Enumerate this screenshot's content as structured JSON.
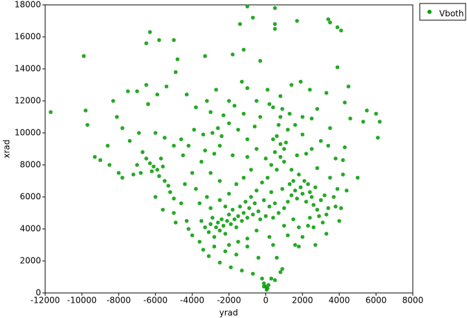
{
  "chart_data": {
    "type": "scatter",
    "x_label": "yrad",
    "y_label": "xrad",
    "legend": "upper-right-outside",
    "xlim": [
      -12000,
      8000
    ],
    "xticks": [
      -12000,
      -10000,
      -8000,
      -6000,
      -4000,
      -2000,
      0,
      2000,
      4000,
      6000,
      8000
    ],
    "ylim": [
      0,
      18000
    ],
    "yticks": [
      0,
      2000,
      4000,
      6000,
      8000,
      10000,
      12000,
      14000,
      16000,
      18000
    ],
    "x": [
      -11700,
      -9900,
      -6300,
      -6500,
      -5800,
      -5000,
      -4800,
      -3300,
      -1800,
      -1200,
      -1400,
      -1000,
      -700,
      -300,
      500,
      500,
      500,
      1700,
      3400,
      3500,
      3900,
      4100,
      3900,
      -9800,
      -9700,
      -9300,
      -9000,
      -8600,
      -8300,
      -8100,
      -7500,
      -7000,
      -6500,
      -6400,
      -5900,
      -5400,
      -4900,
      -4300,
      -3800,
      -3200,
      -2700,
      -2000,
      -1300,
      -1000,
      -500,
      100,
      -1200,
      400,
      1400,
      1900,
      2400,
      3300,
      4500,
      4300,
      4600,
      5500,
      5300,
      6000,
      6200,
      6100,
      5000,
      4400,
      4100,
      4000,
      -8500,
      -8000,
      -7800,
      -7200,
      -7000,
      -6700,
      -6500,
      -6300,
      -6100,
      -5900,
      -5800,
      -5600,
      -5500,
      -5300,
      -5200,
      -5000,
      -5600,
      -5000,
      -6000,
      -6800,
      -6200,
      -5700,
      -7400,
      -7800,
      -6900,
      -6000,
      -5500,
      -5000,
      -4600,
      -4200,
      -4500,
      -3900,
      -3400,
      -2900,
      -2600,
      -2400,
      -2000,
      -3000,
      -2300,
      -1500,
      -1000,
      -600,
      -1800,
      -2800,
      -3500,
      -4000,
      -3000,
      -2500,
      -3800,
      -4400,
      -3200,
      -3500,
      -3300,
      -3100,
      -3000,
      -2900,
      -2800,
      -2700,
      -2600,
      -2500,
      -2400,
      -2300,
      -2200,
      -2100,
      -2000,
      -1900,
      -1800,
      -1700,
      -1600,
      -1500,
      -1400,
      -1300,
      -1200,
      -1100,
      -1000,
      -900,
      -800,
      -700,
      -600,
      -500,
      -400,
      -300,
      -200,
      -100,
      0,
      100,
      200,
      300,
      400,
      500,
      600,
      700,
      800,
      900,
      1000,
      1100,
      1200,
      1300,
      1400,
      1500,
      1600,
      1700,
      1800,
      1900,
      2000,
      2100,
      2200,
      2300,
      2400,
      2500,
      2600,
      2700,
      2800,
      2900,
      3000,
      3100,
      3200,
      3300,
      3400,
      2600,
      2000,
      1600,
      1200,
      1800,
      600,
      700,
      800,
      900,
      1000,
      800,
      500,
      300,
      1200,
      1000,
      400,
      1400,
      1700,
      2200,
      2500,
      3000,
      3400,
      3800,
      2800,
      3500,
      2000,
      1600,
      2500,
      1300,
      -300,
      -800,
      -1200,
      -1600,
      -2000,
      -2500,
      -2200,
      -3000,
      -3600,
      -4300,
      -4000,
      -3600,
      -3400,
      -3100,
      -2800,
      -2500,
      -2200,
      -1900,
      -1600,
      -1300,
      -1000,
      -700,
      -400,
      -200,
      -100,
      0,
      50,
      100,
      -100,
      150,
      300,
      500,
      800,
      900,
      600,
      400,
      200,
      1000,
      1500,
      2300,
      2700,
      -4900,
      -4200,
      -1000,
      -500,
      -1500,
      -2000,
      -4600,
      1800,
      2400,
      3300,
      3700,
      3800,
      3900,
      4200,
      4200,
      4300,
      3500,
      2800,
      2000,
      800,
      200,
      -1700,
      -2500,
      -3300,
      -1000,
      -500,
      0
    ],
    "series": [
      {
        "name": "Vboth",
        "color": "#0ea00e",
        "values": [
          11300,
          14800,
          16300,
          15600,
          15800,
          15800,
          14600,
          14800,
          14900,
          15200,
          16800,
          17900,
          17200,
          14500,
          17800,
          16800,
          16500,
          17000,
          17100,
          16900,
          16600,
          16400,
          14100,
          11400,
          10500,
          8500,
          8300,
          9200,
          12000,
          11000,
          12600,
          12600,
          13000,
          11800,
          12400,
          12900,
          13800,
          12400,
          11600,
          12000,
          12700,
          12000,
          13200,
          12800,
          12000,
          12700,
          11200,
          11600,
          13000,
          13200,
          12700,
          12500,
          12900,
          11900,
          10900,
          11400,
          10700,
          11200,
          10700,
          9700,
          7200,
          6400,
          5300,
          4500,
          8000,
          7500,
          7200,
          7400,
          8000,
          8800,
          8400,
          8100,
          7900,
          7700,
          7300,
          7900,
          7000,
          6700,
          6300,
          5900,
          5200,
          5000,
          6000,
          7500,
          7600,
          8400,
          9500,
          10300,
          10000,
          10000,
          9700,
          9200,
          9600,
          9200,
          8600,
          10200,
          9900,
          10000,
          10300,
          9800,
          10600,
          11300,
          11100,
          10200,
          9600,
          10400,
          8600,
          8700,
          8200,
          7500,
          7500,
          7000,
          6500,
          6800,
          6000,
          4500,
          4100,
          3800,
          4300,
          4700,
          3500,
          4100,
          4400,
          3900,
          4600,
          4200,
          3700,
          4500,
          4900,
          4300,
          5200,
          4600,
          4100,
          4800,
          5400,
          4500,
          5000,
          5700,
          4700,
          5300,
          6000,
          4900,
          5600,
          6400,
          5100,
          4600,
          6900,
          5800,
          4800,
          7200,
          5400,
          6300,
          4700,
          5600,
          7700,
          5000,
          8500,
          6500,
          5300,
          9400,
          5700,
          6800,
          6100,
          7000,
          6400,
          5900,
          7400,
          6600,
          6200,
          7000,
          5700,
          6800,
          6300,
          6000,
          5500,
          6600,
          5200,
          4800,
          5800,
          4400,
          6100,
          3700,
          5300,
          4100,
          3500,
          3000,
          3600,
          2900,
          9800,
          10500,
          11000,
          11500,
          9000,
          9300,
          8800,
          8000,
          10200,
          8200,
          9600,
          7700,
          8600,
          8700,
          9000,
          9500,
          9200,
          8400,
          7800,
          7200,
          9900,
          10500,
          10900,
          11200,
          11000,
          7700,
          7200,
          6800,
          6200,
          5800,
          5400,
          5300,
          5600,
          4500,
          3600,
          3200,
          2700,
          2300,
          2900,
          1900,
          2600,
          1600,
          2400,
          1400,
          2900,
          1200,
          2200,
          900,
          600,
          400,
          200,
          300,
          400,
          500,
          900,
          800,
          1300,
          1500,
          2200,
          3000,
          3500,
          4200,
          4600,
          4200,
          3000,
          4400,
          4000,
          3400,
          3900,
          3200,
          3000,
          5600,
          4100,
          4700,
          4900,
          6000,
          5400,
          6500,
          7400,
          8300,
          9100,
          10300,
          11500,
          11000,
          12300,
          11800,
          11700,
          9200,
          8900,
          8500,
          9000,
          8400
        ]
      }
    ]
  }
}
